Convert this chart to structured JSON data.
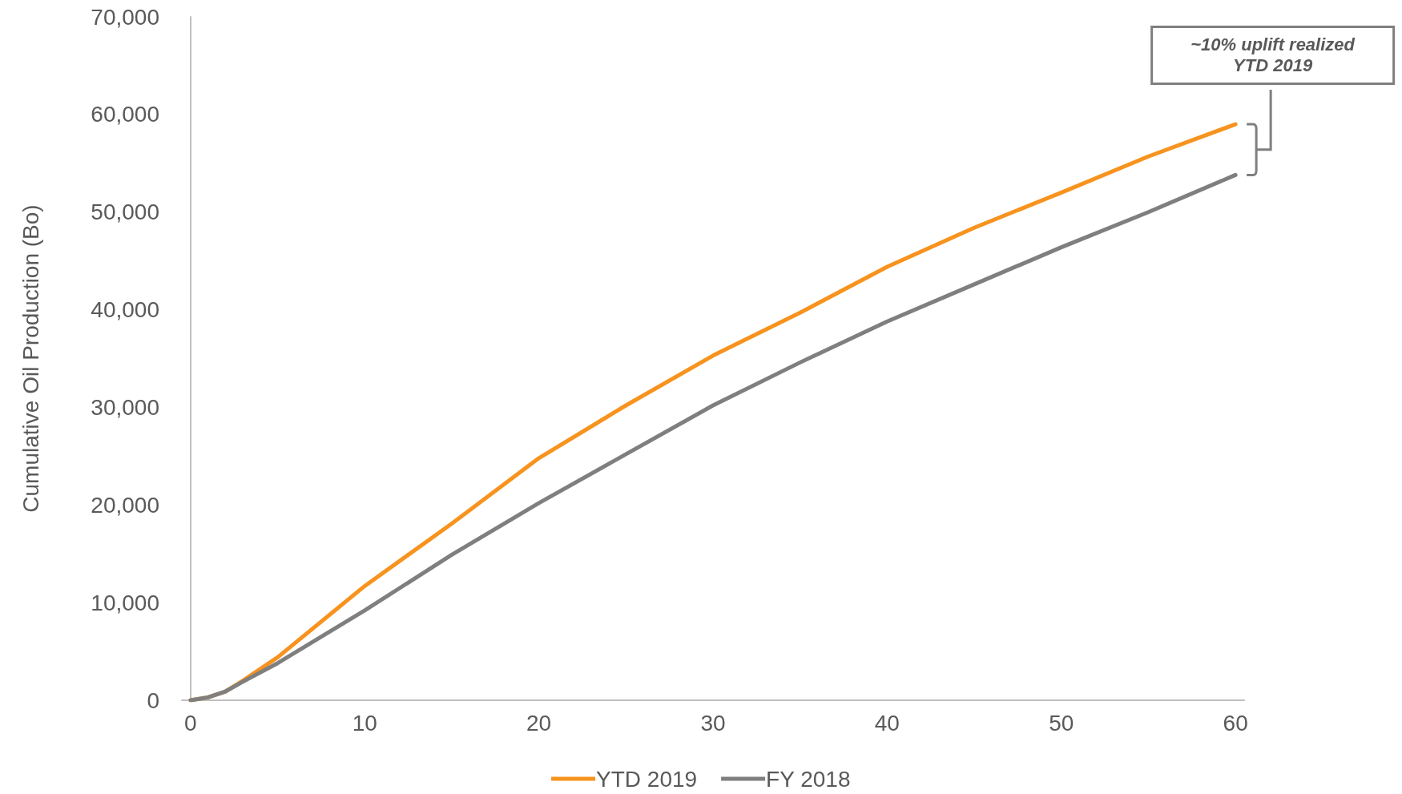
{
  "chart_data": {
    "type": "line",
    "ylabel": "Cumulative Oil Production (Bo)",
    "xlim": [
      -0.5,
      60.5
    ],
    "xticks": [
      0,
      10,
      20,
      30,
      40,
      50,
      60
    ],
    "ylim": [
      0,
      70000
    ],
    "yticks": [
      {
        "value": 0,
        "label": "0"
      },
      {
        "value": 10000,
        "label": "10,000"
      },
      {
        "value": 20000,
        "label": "20,000"
      },
      {
        "value": 30000,
        "label": "30,000"
      },
      {
        "value": 40000,
        "label": "40,000"
      },
      {
        "value": 50000,
        "label": "50,000"
      },
      {
        "value": 60000,
        "label": "60,000"
      },
      {
        "value": 70000,
        "label": "70,000"
      }
    ],
    "x": [
      0,
      1,
      2,
      3,
      5,
      10,
      15,
      20,
      25,
      30,
      35,
      40,
      45,
      50,
      55,
      60
    ],
    "series": [
      {
        "name": "YTD 2019",
        "color": "#f7931e",
        "values": [
          0,
          300,
          900,
          2000,
          4400,
          11700,
          18100,
          24800,
          30200,
          35300,
          39700,
          44400,
          48400,
          52000,
          55700,
          59000
        ]
      },
      {
        "name": "FY 2018",
        "color": "#7f7f7f",
        "values": [
          0,
          300,
          900,
          1900,
          3800,
          9200,
          14900,
          20200,
          25200,
          30200,
          34600,
          38800,
          42600,
          46400,
          50000,
          53800
        ]
      }
    ],
    "annotations": [
      "~10% uplift realized\nYTD 2019"
    ],
    "grid": false,
    "legend": "bottom",
    "marker": "none",
    "line_style": "solid"
  }
}
